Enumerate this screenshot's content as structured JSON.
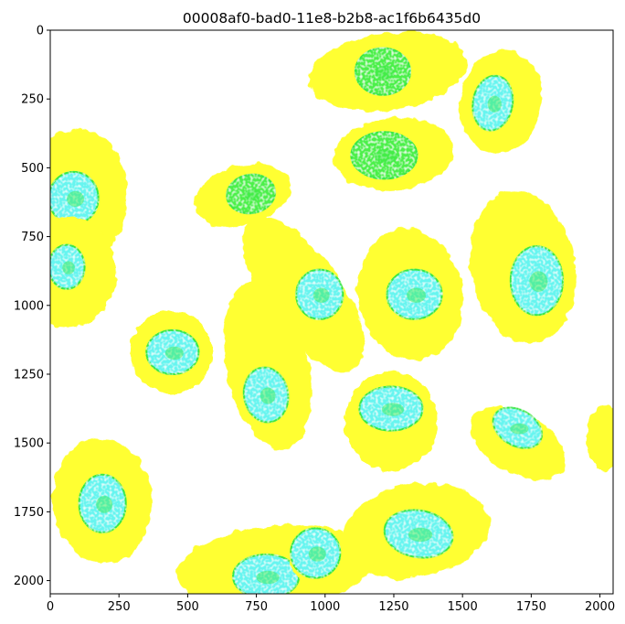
{
  "figure": {
    "title": "00008af0-bad0-11e8-b2b8-ac1f6b6435d0"
  },
  "axes": {
    "x_ticks": [
      "0",
      "250",
      "500",
      "750",
      "1000",
      "1250",
      "1500",
      "1750",
      "2000"
    ],
    "y_ticks": [
      "0",
      "250",
      "500",
      "750",
      "1000",
      "1250",
      "1500",
      "1750",
      "2000"
    ],
    "x_range": [
      0,
      2048
    ],
    "y_range": [
      2048,
      0
    ]
  },
  "colors": {
    "cytoplasm": "#ffff33",
    "nucleus_fill": "#66f5f0",
    "nucleus_outline": "#39e845",
    "nucleus_green": "#4cf04a",
    "background": "#ffffff"
  },
  "cells": [
    {
      "cx": 1230,
      "cy": 150,
      "rx": 290,
      "ry": 140,
      "rot": -8,
      "ncx": 1210,
      "ncy": 150,
      "nrx": 100,
      "nry": 85,
      "nrot": 0,
      "nucleus": "green"
    },
    {
      "cx": 1640,
      "cy": 260,
      "rx": 150,
      "ry": 190,
      "rot": 10,
      "ncx": 1610,
      "ncy": 265,
      "nrx": 72,
      "nry": 100,
      "nrot": 10,
      "nucleus": "cyan"
    },
    {
      "cx": 1250,
      "cy": 450,
      "rx": 220,
      "ry": 130,
      "rot": -5,
      "ncx": 1215,
      "ncy": 455,
      "nrx": 120,
      "nry": 85,
      "nrot": 0,
      "nucleus": "green"
    },
    {
      "cx": 80,
      "cy": 620,
      "rx": 200,
      "ry": 260,
      "rot": 10,
      "ncx": 85,
      "ncy": 610,
      "nrx": 90,
      "nry": 95,
      "nrot": 0,
      "nucleus": "cyan"
    },
    {
      "cx": 700,
      "cy": 600,
      "rx": 180,
      "ry": 110,
      "rot": -15,
      "ncx": 730,
      "ncy": 595,
      "nrx": 88,
      "nry": 70,
      "nrot": -10,
      "nucleus": "green"
    },
    {
      "cx": 60,
      "cy": 880,
      "rx": 180,
      "ry": 200,
      "rot": 0,
      "ncx": 60,
      "ncy": 860,
      "nrx": 65,
      "nry": 80,
      "nrot": 0,
      "nucleus": "cyan"
    },
    {
      "cx": 1720,
      "cy": 860,
      "rx": 190,
      "ry": 280,
      "rot": -10,
      "ncx": 1770,
      "ncy": 910,
      "nrx": 95,
      "nry": 125,
      "nrot": 0,
      "nucleus": "cyan"
    },
    {
      "cx": 1310,
      "cy": 960,
      "rx": 190,
      "ry": 240,
      "rot": -10,
      "ncx": 1325,
      "ncy": 960,
      "nrx": 100,
      "nry": 90,
      "nrot": 0,
      "nucleus": "cyan"
    },
    {
      "cx": 920,
      "cy": 960,
      "rx": 140,
      "ry": 330,
      "rot": -35,
      "ncx": 980,
      "ncy": 960,
      "nrx": 85,
      "nry": 90,
      "nrot": 0,
      "nucleus": "cyan"
    },
    {
      "cx": 440,
      "cy": 1170,
      "rx": 150,
      "ry": 150,
      "rot": 0,
      "ncx": 445,
      "ncy": 1170,
      "nrx": 95,
      "nry": 80,
      "nrot": 0,
      "nucleus": "cyan"
    },
    {
      "cx": 790,
      "cy": 1220,
      "rx": 150,
      "ry": 310,
      "rot": -12,
      "ncx": 785,
      "ncy": 1325,
      "nrx": 80,
      "nry": 100,
      "nrot": -10,
      "nucleus": "cyan"
    },
    {
      "cx": 1240,
      "cy": 1420,
      "rx": 170,
      "ry": 180,
      "rot": 0,
      "ncx": 1240,
      "ncy": 1375,
      "nrx": 115,
      "nry": 80,
      "nrot": 0,
      "nucleus": "cyan"
    },
    {
      "cx": 1700,
      "cy": 1500,
      "rx": 190,
      "ry": 110,
      "rot": 30,
      "ncx": 1700,
      "ncy": 1445,
      "nrx": 95,
      "nry": 65,
      "nrot": 30,
      "nucleus": "cyan"
    },
    {
      "cx": 2020,
      "cy": 1480,
      "rx": 70,
      "ry": 120,
      "rot": 0,
      "ncx": 0,
      "ncy": 0,
      "nrx": 0,
      "nry": 0,
      "nrot": 0,
      "nucleus": "none"
    },
    {
      "cx": 190,
      "cy": 1710,
      "rx": 180,
      "ry": 230,
      "rot": -5,
      "ncx": 190,
      "ncy": 1720,
      "nrx": 85,
      "nry": 105,
      "nrot": 0,
      "nucleus": "cyan"
    },
    {
      "cx": 1330,
      "cy": 1820,
      "rx": 270,
      "ry": 170,
      "rot": -10,
      "ncx": 1340,
      "ncy": 1830,
      "nrx": 125,
      "nry": 85,
      "nrot": 10,
      "nucleus": "cyan"
    },
    {
      "cx": 820,
      "cy": 1950,
      "rx": 360,
      "ry": 150,
      "rot": -5,
      "ncx": 785,
      "ncy": 1985,
      "nrx": 120,
      "nry": 80,
      "nrot": 0,
      "nucleus": "cyan"
    },
    {
      "cx": 960,
      "cy": 1900,
      "rx": 100,
      "ry": 100,
      "rot": 0,
      "ncx": 965,
      "ncy": 1900,
      "nrx": 90,
      "nry": 90,
      "nrot": 0,
      "nucleus": "cyan"
    }
  ]
}
